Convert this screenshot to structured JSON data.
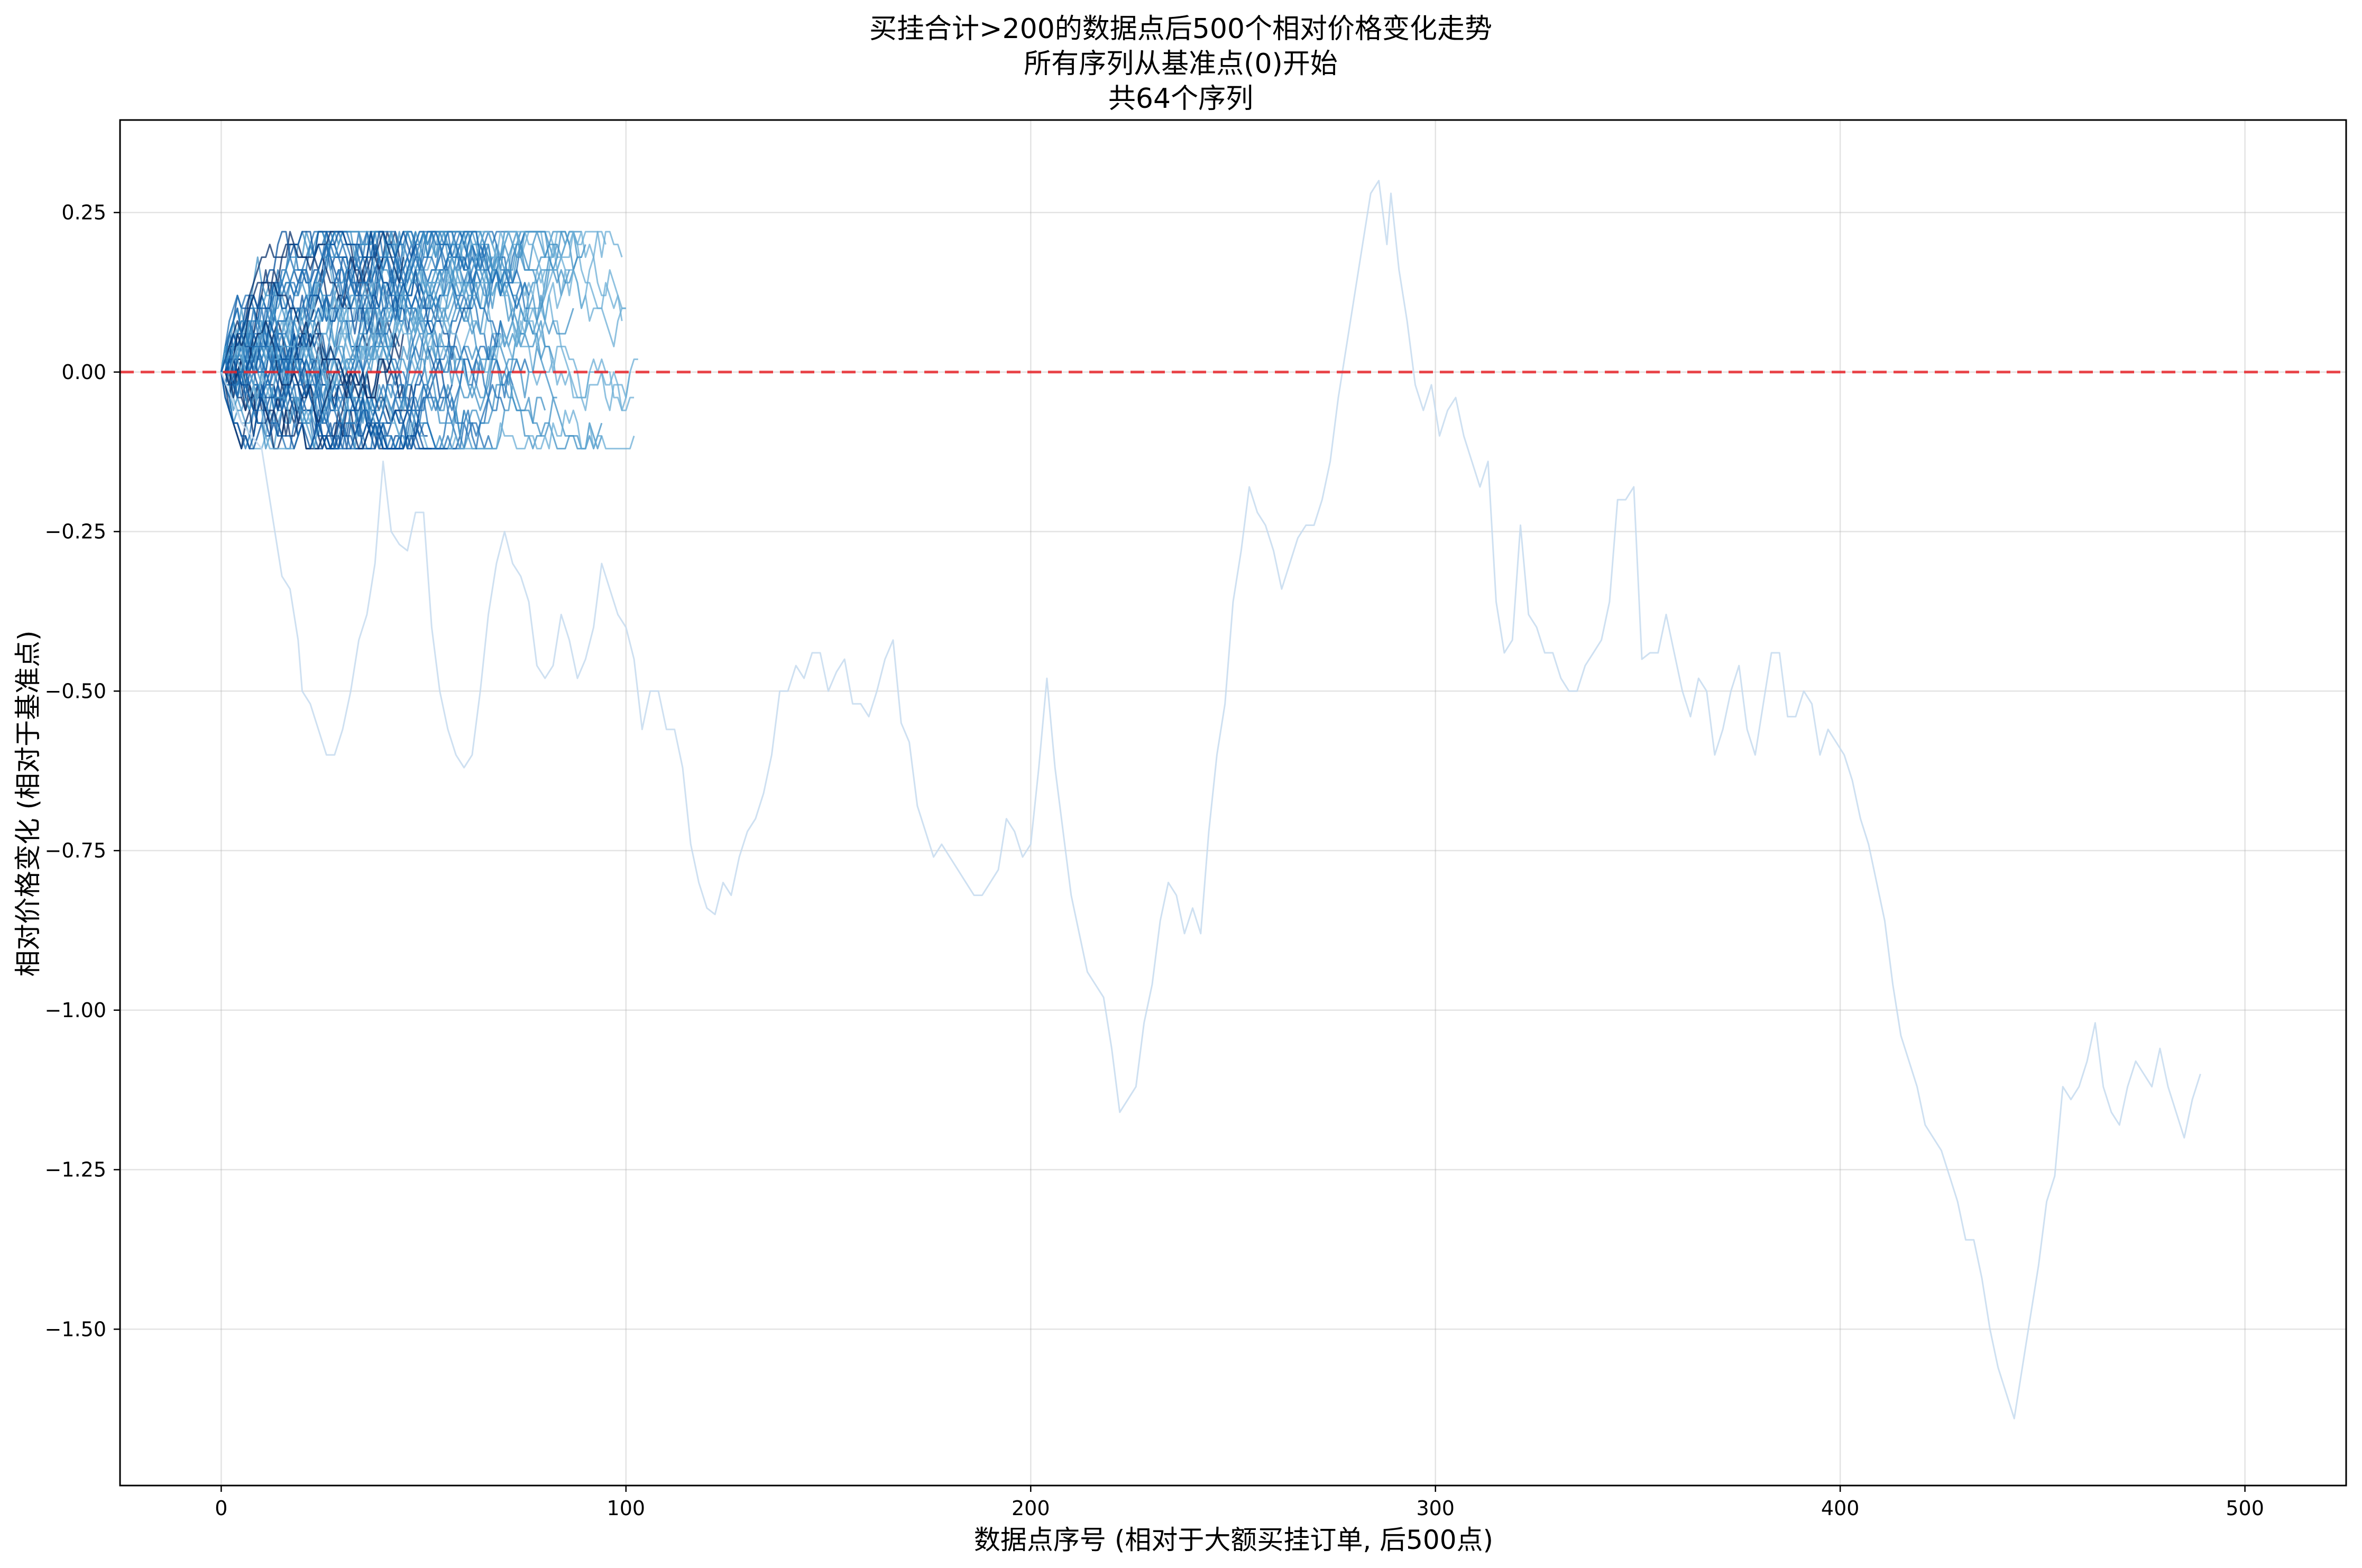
{
  "chart_data": {
    "type": "line",
    "title_lines": [
      "买挂合计>200的数据点后500个相对价格变化走势",
      "所有序列从基准点(0)开始",
      "共64个序列"
    ],
    "xlabel": "数据点序号 (相对于大额买挂订单, 后500点)",
    "ylabel": "相对价格变化 (相对于基准点)",
    "xlim": [
      -25,
      525
    ],
    "ylim": [
      -1.745,
      0.395
    ],
    "x_ticks": [
      0,
      100,
      200,
      300,
      400,
      500
    ],
    "x_tick_labels": [
      "0",
      "100",
      "200",
      "300",
      "400",
      "500"
    ],
    "y_ticks": [
      0.25,
      0.0,
      -0.25,
      -0.5,
      -0.75,
      -1.0,
      -1.25,
      -1.5
    ],
    "y_tick_labels": [
      "0.25",
      "0.00",
      "−0.25",
      "−0.50",
      "−0.75",
      "−1.00",
      "−1.25",
      "−1.50"
    ],
    "grid": true,
    "series_count": 64,
    "colormap": [
      "#c6dbef",
      "#9ecae1",
      "#6baed6",
      "#4292c6",
      "#2171b5",
      "#08519c",
      "#08306b"
    ],
    "reference_line": {
      "y": 0,
      "color": "#e8262a",
      "style": "dashed"
    },
    "long_series": {
      "color": "#c6dbef",
      "points": [
        [
          0,
          0
        ],
        [
          5,
          -0.08
        ],
        [
          10,
          -0.12
        ],
        [
          12,
          -0.2
        ],
        [
          15,
          -0.32
        ],
        [
          17,
          -0.34
        ],
        [
          18,
          -0.38
        ],
        [
          19,
          -0.42
        ],
        [
          20,
          -0.5
        ],
        [
          22,
          -0.52
        ],
        [
          24,
          -0.56
        ],
        [
          26,
          -0.6
        ],
        [
          28,
          -0.6
        ],
        [
          30,
          -0.56
        ],
        [
          32,
          -0.5
        ],
        [
          34,
          -0.42
        ],
        [
          36,
          -0.38
        ],
        [
          38,
          -0.3
        ],
        [
          40,
          -0.14
        ],
        [
          42,
          -0.25
        ],
        [
          44,
          -0.27
        ],
        [
          46,
          -0.28
        ],
        [
          48,
          -0.22
        ],
        [
          50,
          -0.22
        ],
        [
          52,
          -0.4
        ],
        [
          54,
          -0.5
        ],
        [
          56,
          -0.56
        ],
        [
          58,
          -0.6
        ],
        [
          60,
          -0.62
        ],
        [
          62,
          -0.6
        ],
        [
          64,
          -0.5
        ],
        [
          66,
          -0.38
        ],
        [
          68,
          -0.3
        ],
        [
          70,
          -0.25
        ],
        [
          72,
          -0.3
        ],
        [
          74,
          -0.32
        ],
        [
          76,
          -0.36
        ],
        [
          78,
          -0.46
        ],
        [
          80,
          -0.48
        ],
        [
          82,
          -0.46
        ],
        [
          84,
          -0.38
        ],
        [
          86,
          -0.42
        ],
        [
          88,
          -0.48
        ],
        [
          90,
          -0.45
        ],
        [
          92,
          -0.4
        ],
        [
          94,
          -0.3
        ],
        [
          96,
          -0.34
        ],
        [
          98,
          -0.38
        ],
        [
          100,
          -0.4
        ],
        [
          102,
          -0.45
        ],
        [
          104,
          -0.56
        ],
        [
          106,
          -0.5
        ],
        [
          108,
          -0.5
        ],
        [
          110,
          -0.56
        ],
        [
          112,
          -0.56
        ],
        [
          114,
          -0.62
        ],
        [
          116,
          -0.74
        ],
        [
          118,
          -0.8
        ],
        [
          120,
          -0.84
        ],
        [
          122,
          -0.85
        ],
        [
          124,
          -0.8
        ],
        [
          126,
          -0.82
        ],
        [
          128,
          -0.76
        ],
        [
          130,
          -0.72
        ],
        [
          132,
          -0.7
        ],
        [
          134,
          -0.66
        ],
        [
          136,
          -0.6
        ],
        [
          138,
          -0.5
        ],
        [
          140,
          -0.5
        ],
        [
          142,
          -0.46
        ],
        [
          144,
          -0.48
        ],
        [
          146,
          -0.44
        ],
        [
          148,
          -0.44
        ],
        [
          150,
          -0.5
        ],
        [
          152,
          -0.47
        ],
        [
          154,
          -0.45
        ],
        [
          156,
          -0.52
        ],
        [
          158,
          -0.52
        ],
        [
          160,
          -0.54
        ],
        [
          162,
          -0.5
        ],
        [
          164,
          -0.45
        ],
        [
          166,
          -0.42
        ],
        [
          168,
          -0.55
        ],
        [
          170,
          -0.58
        ],
        [
          172,
          -0.68
        ],
        [
          174,
          -0.72
        ],
        [
          176,
          -0.76
        ],
        [
          178,
          -0.74
        ],
        [
          180,
          -0.76
        ],
        [
          182,
          -0.78
        ],
        [
          184,
          -0.8
        ],
        [
          186,
          -0.82
        ],
        [
          188,
          -0.82
        ],
        [
          190,
          -0.8
        ],
        [
          192,
          -0.78
        ],
        [
          194,
          -0.7
        ],
        [
          196,
          -0.72
        ],
        [
          198,
          -0.76
        ],
        [
          200,
          -0.74
        ],
        [
          202,
          -0.62
        ],
        [
          204,
          -0.48
        ],
        [
          206,
          -0.62
        ],
        [
          208,
          -0.72
        ],
        [
          210,
          -0.82
        ],
        [
          212,
          -0.88
        ],
        [
          214,
          -0.94
        ],
        [
          216,
          -0.96
        ],
        [
          218,
          -0.98
        ],
        [
          220,
          -1.06
        ],
        [
          222,
          -1.16
        ],
        [
          224,
          -1.14
        ],
        [
          226,
          -1.12
        ],
        [
          228,
          -1.02
        ],
        [
          230,
          -0.96
        ],
        [
          232,
          -0.86
        ],
        [
          234,
          -0.8
        ],
        [
          236,
          -0.82
        ],
        [
          238,
          -0.88
        ],
        [
          240,
          -0.84
        ],
        [
          242,
          -0.88
        ],
        [
          244,
          -0.72
        ],
        [
          246,
          -0.6
        ],
        [
          248,
          -0.52
        ],
        [
          250,
          -0.36
        ],
        [
          252,
          -0.28
        ],
        [
          254,
          -0.18
        ],
        [
          256,
          -0.22
        ],
        [
          258,
          -0.24
        ],
        [
          260,
          -0.28
        ],
        [
          262,
          -0.34
        ],
        [
          264,
          -0.3
        ],
        [
          266,
          -0.26
        ],
        [
          268,
          -0.24
        ],
        [
          270,
          -0.24
        ],
        [
          272,
          -0.2
        ],
        [
          274,
          -0.14
        ],
        [
          276,
          -0.04
        ],
        [
          278,
          0.04
        ],
        [
          280,
          0.12
        ],
        [
          282,
          0.2
        ],
        [
          284,
          0.28
        ],
        [
          286,
          0.3
        ],
        [
          288,
          0.2
        ],
        [
          289,
          0.28
        ],
        [
          291,
          0.16
        ],
        [
          293,
          0.08
        ],
        [
          295,
          -0.02
        ],
        [
          297,
          -0.06
        ],
        [
          299,
          -0.02
        ],
        [
          301,
          -0.1
        ],
        [
          303,
          -0.06
        ],
        [
          305,
          -0.04
        ],
        [
          307,
          -0.1
        ],
        [
          309,
          -0.14
        ],
        [
          311,
          -0.18
        ],
        [
          313,
          -0.14
        ],
        [
          315,
          -0.36
        ],
        [
          317,
          -0.44
        ],
        [
          319,
          -0.42
        ],
        [
          321,
          -0.24
        ],
        [
          323,
          -0.38
        ],
        [
          325,
          -0.4
        ],
        [
          327,
          -0.44
        ],
        [
          329,
          -0.44
        ],
        [
          331,
          -0.48
        ],
        [
          333,
          -0.5
        ],
        [
          335,
          -0.5
        ],
        [
          337,
          -0.46
        ],
        [
          339,
          -0.44
        ],
        [
          341,
          -0.42
        ],
        [
          343,
          -0.36
        ],
        [
          345,
          -0.2
        ],
        [
          347,
          -0.2
        ],
        [
          349,
          -0.18
        ],
        [
          351,
          -0.45
        ],
        [
          353,
          -0.44
        ],
        [
          355,
          -0.44
        ],
        [
          357,
          -0.38
        ],
        [
          359,
          -0.44
        ],
        [
          361,
          -0.5
        ],
        [
          363,
          -0.54
        ],
        [
          365,
          -0.48
        ],
        [
          367,
          -0.5
        ],
        [
          369,
          -0.6
        ],
        [
          371,
          -0.56
        ],
        [
          373,
          -0.5
        ],
        [
          375,
          -0.46
        ],
        [
          377,
          -0.56
        ],
        [
          379,
          -0.6
        ],
        [
          381,
          -0.52
        ],
        [
          383,
          -0.44
        ],
        [
          385,
          -0.44
        ],
        [
          387,
          -0.54
        ],
        [
          389,
          -0.54
        ],
        [
          391,
          -0.5
        ],
        [
          393,
          -0.52
        ],
        [
          395,
          -0.6
        ],
        [
          397,
          -0.56
        ],
        [
          399,
          -0.58
        ],
        [
          401,
          -0.6
        ],
        [
          403,
          -0.64
        ],
        [
          405,
          -0.7
        ],
        [
          407,
          -0.74
        ],
        [
          409,
          -0.8
        ],
        [
          411,
          -0.86
        ],
        [
          413,
          -0.96
        ],
        [
          415,
          -1.04
        ],
        [
          417,
          -1.08
        ],
        [
          419,
          -1.12
        ],
        [
          421,
          -1.18
        ],
        [
          423,
          -1.2
        ],
        [
          425,
          -1.22
        ],
        [
          427,
          -1.26
        ],
        [
          429,
          -1.3
        ],
        [
          431,
          -1.36
        ],
        [
          433,
          -1.36
        ],
        [
          435,
          -1.42
        ],
        [
          437,
          -1.5
        ],
        [
          439,
          -1.56
        ],
        [
          441,
          -1.6
        ],
        [
          443,
          -1.64
        ],
        [
          445,
          -1.56
        ],
        [
          447,
          -1.48
        ],
        [
          449,
          -1.4
        ],
        [
          451,
          -1.3
        ],
        [
          453,
          -1.26
        ],
        [
          455,
          -1.12
        ],
        [
          457,
          -1.14
        ],
        [
          459,
          -1.12
        ],
        [
          461,
          -1.08
        ],
        [
          463,
          -1.02
        ],
        [
          465,
          -1.12
        ],
        [
          467,
          -1.16
        ],
        [
          469,
          -1.18
        ],
        [
          471,
          -1.12
        ],
        [
          473,
          -1.08
        ],
        [
          475,
          -1.1
        ],
        [
          477,
          -1.12
        ],
        [
          479,
          -1.06
        ],
        [
          481,
          -1.12
        ],
        [
          483,
          -1.16
        ],
        [
          485,
          -1.2
        ],
        [
          487,
          -1.14
        ],
        [
          489,
          -1.1
        ]
      ]
    }
  }
}
